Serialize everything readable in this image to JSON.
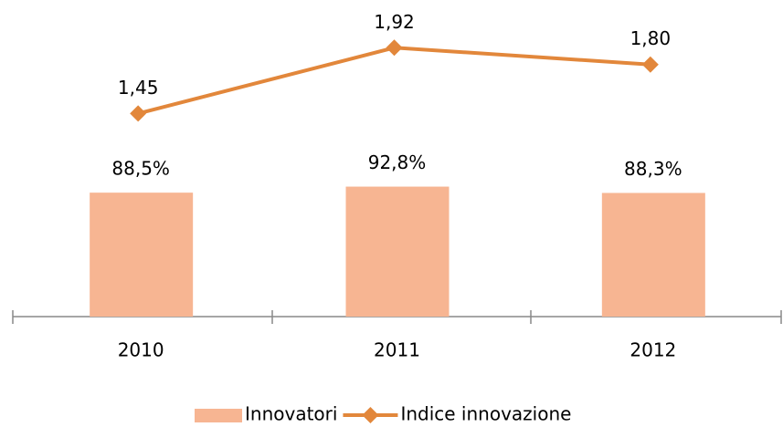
{
  "chart_data": {
    "type": "bar-line",
    "categories": [
      "2010",
      "2011",
      "2012"
    ],
    "series": [
      {
        "name": "Innovatori",
        "type": "bar",
        "color": "#f7b592",
        "values": [
          88.5,
          92.8,
          88.3
        ],
        "value_labels": [
          "88,5%",
          "92,8%",
          "88,3%"
        ]
      },
      {
        "name": "Indice innovazione",
        "type": "line",
        "axis": "y2",
        "color": "#e2873b",
        "values": [
          1.45,
          1.92,
          1.8
        ],
        "value_labels": [
          "1,45",
          "1,92",
          "1,80"
        ]
      }
    ],
    "ylim": [
      0,
      200
    ],
    "y2lim": [
      0,
      2
    ],
    "legend": "bottom"
  }
}
